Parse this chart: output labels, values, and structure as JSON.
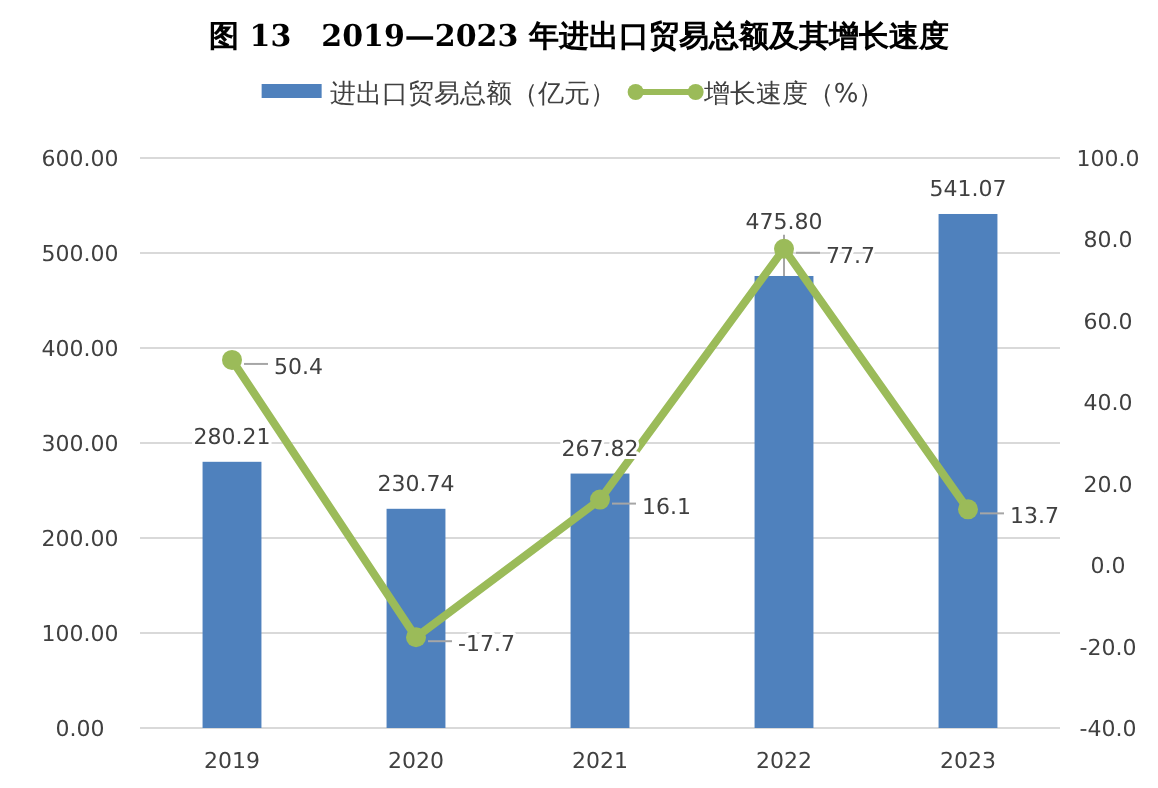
{
  "chart_data": {
    "type": "bar",
    "title": "图 13　2019—2023 年进出口贸易总额及其增长速度",
    "categories": [
      "2019",
      "2020",
      "2021",
      "2022",
      "2023"
    ],
    "series": [
      {
        "name": "进出口贸易总额（亿元）",
        "color": "#4f81bd",
        "values": [
          280.21,
          230.74,
          267.82,
          475.8,
          541.07
        ],
        "value_labels": [
          "280.21",
          "230.74",
          "267.82",
          "475.80",
          "541.07"
        ]
      },
      {
        "name": "增长速度（%）",
        "type": "line",
        "axis": "y2",
        "color": "#9bbb59",
        "marker": "circle",
        "values": [
          50.4,
          -17.7,
          16.1,
          77.7,
          13.7
        ],
        "value_labels": [
          "50.4",
          "-17.7",
          "16.1",
          "77.7",
          "13.7"
        ]
      }
    ],
    "ylim": [
      0,
      600
    ],
    "yticks": [
      {
        "value": 0,
        "label": "0.00"
      },
      {
        "value": 100,
        "label": "100.00"
      },
      {
        "value": 200,
        "label": "200.00"
      },
      {
        "value": 300,
        "label": "300.00"
      },
      {
        "value": 400,
        "label": "400.00"
      },
      {
        "value": 500,
        "label": "500.00"
      },
      {
        "value": 600,
        "label": "600.00"
      }
    ],
    "y2lim": [
      -40,
      100
    ],
    "y2ticks": [
      {
        "value": -40,
        "label": "-40.0"
      },
      {
        "value": -20,
        "label": "-20.0"
      },
      {
        "value": 0,
        "label": "0.0"
      },
      {
        "value": 20,
        "label": "20.0"
      },
      {
        "value": 40,
        "label": "40.0"
      },
      {
        "value": 60,
        "label": "60.0"
      },
      {
        "value": 80,
        "label": "80.0"
      },
      {
        "value": 100,
        "label": "100.0"
      }
    ],
    "grid": "y",
    "legend": "top"
  }
}
